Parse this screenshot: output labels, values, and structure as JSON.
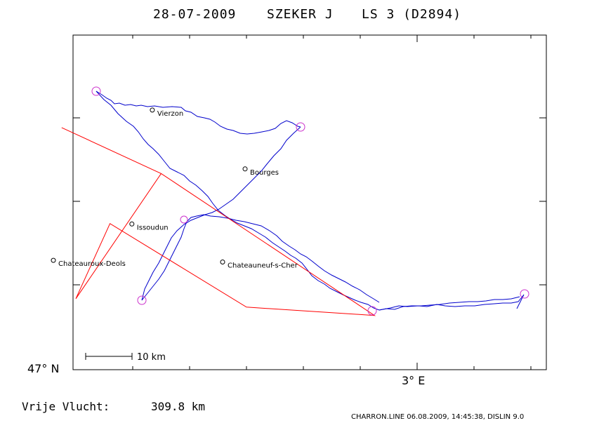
{
  "header": {
    "date": "28-07-2009",
    "pilot": "SZEKER J",
    "class": "LS 3 (D2894)"
  },
  "colors": {
    "track": "#0000cc",
    "task": "#ff0000",
    "turnpoint": "#cc33cc",
    "frame": "#000000"
  },
  "towns": [
    {
      "name": "Vierzon",
      "lon": 2.069,
      "lat": 47.222
    },
    {
      "name": "Bourges",
      "lon": 2.395,
      "lat": 47.081
    },
    {
      "name": "Chateauroux-Deols",
      "lon": 1.721,
      "lat": 46.862
    },
    {
      "name": "Issoudun",
      "lon": 1.997,
      "lat": 46.949
    },
    {
      "name": "Chateauneuf-s-Cher",
      "lon": 2.316,
      "lat": 46.858
    }
  ],
  "task_route": [
    {
      "lon": 1.75,
      "lat": 47.18
    },
    {
      "lon": 2.1,
      "lat": 47.07
    },
    {
      "lon": 2.85,
      "lat": 46.73
    },
    {
      "lon": 2.4,
      "lat": 46.75
    },
    {
      "lon": 1.92,
      "lat": 46.95
    },
    {
      "lon": 1.8,
      "lat": 46.77
    },
    {
      "lon": 2.1,
      "lat": 47.07
    },
    {
      "lon": 1.75,
      "lat": 47.18
    }
  ],
  "axes": {
    "lat_label": "47° N",
    "lon_label": "3° E"
  },
  "scale_bar": {
    "label": "10 km"
  },
  "distance": {
    "label": "Vrije Vlucht:",
    "value": "309.8 km"
  },
  "footer": "CHARRON.LINE 06.08.2009, 14:45:38, DISLIN 9.0"
}
